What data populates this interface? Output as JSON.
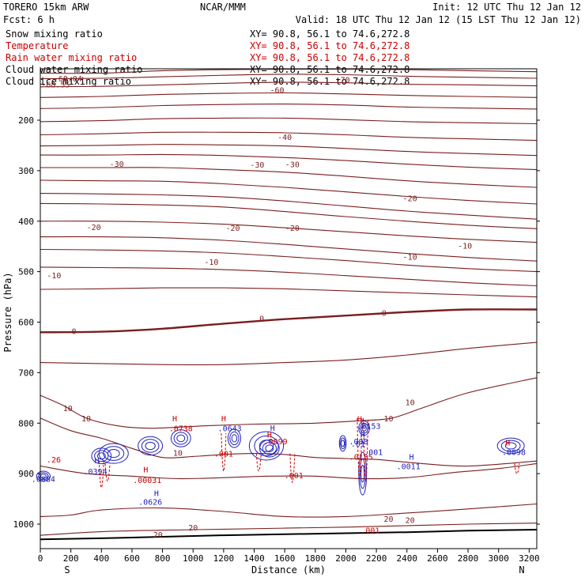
{
  "header": {
    "model": "TORERO  15km ARW",
    "institution": "NCAR/MMM",
    "init": "Init: 12 UTC Thu 12 Jan 12",
    "fcst": "Fcst:    6 h",
    "valid": "Valid: 18 UTC Thu 12 Jan 12 (15 LST Thu 12 Jan 12)"
  },
  "fields": [
    {
      "name": "Snow mixing ratio",
      "xy": "XY=  90.8, 56.1 to  74.6,272.8",
      "color": "#000000"
    },
    {
      "name": "Temperature",
      "xy": "XY=  90.8, 56.1 to  74.6,272.8",
      "color": "#cc0000"
    },
    {
      "name": "Rain water mixing ratio",
      "xy": "XY=  90.8, 56.1 to  74.6,272.8",
      "color": "#cc0000"
    },
    {
      "name": "Cloud water mixing ratio",
      "xy": "XY=  90.8, 56.1 to  74.6,272.8",
      "color": "#000000"
    },
    {
      "name": "Cloud ice mixing ratio",
      "xy": "XY=  90.8, 56.1 to  74.6,272.8",
      "color": "#000000"
    }
  ],
  "colors": {
    "temperature": "#7a1e1e",
    "rain": "#cc0000",
    "cloud": "#2222bb",
    "terrain": "#000000"
  },
  "chart_data": {
    "type": "contour",
    "xlabel": "Distance (km)",
    "ylabel": "Pressure (hPa)",
    "xlim": [
      0,
      3250
    ],
    "ylim": [
      1080,
      100
    ],
    "x_ticks": [
      0,
      200,
      400,
      600,
      800,
      1000,
      1200,
      1400,
      1600,
      1800,
      2000,
      2200,
      2400,
      2600,
      2800,
      3000,
      3200
    ],
    "y_ticks": [
      200,
      300,
      400,
      500,
      600,
      700,
      800,
      900,
      1000
    ],
    "direction_labels": {
      "left": "S",
      "right": "N"
    },
    "terrain": {
      "x": [
        0,
        400,
        800,
        1200,
        1600,
        2000,
        2400,
        2800,
        3250
      ],
      "p": [
        1030,
        1028,
        1025,
        1022,
        1020,
        1018,
        1016,
        1013,
        1011
      ]
    },
    "temperature_contours": [
      {
        "p": [
          107,
          107,
          102,
          100,
          99,
          99,
          100,
          102,
          104
        ]
      },
      {
        "p": [
          118,
          117,
          114,
          111,
          109,
          110,
          113,
          115,
          117
        ]
      },
      {
        "p": [
          134,
          133,
          130,
          127,
          125,
          126,
          129,
          130,
          132
        ]
      },
      {
        "p": [
          155,
          153,
          149,
          147,
          146,
          148,
          151,
          153,
          155
        ]
      },
      {
        "p": [
          177,
          175,
          171,
          169,
          168,
          170,
          174,
          176,
          178
        ]
      },
      {
        "p": [
          203,
          201,
          197,
          196,
          196,
          199,
          203,
          205,
          207
        ]
      },
      {
        "p": [
          229,
          227,
          224,
          224,
          225,
          229,
          234,
          237,
          240
        ]
      },
      {
        "p": [
          251,
          250,
          248,
          249,
          251,
          256,
          262,
          266,
          270
        ]
      },
      {
        "p": [
          269,
          269,
          268,
          270,
          274,
          280,
          287,
          293,
          298
        ]
      },
      {
        "p": [
          294,
          294,
          294,
          298,
          303,
          311,
          320,
          327,
          333
        ]
      },
      {
        "p": [
          319,
          320,
          321,
          326,
          333,
          342,
          351,
          359,
          366
        ]
      },
      {
        "p": [
          345,
          346,
          348,
          352,
          360,
          370,
          380,
          388,
          396
        ]
      },
      {
        "p": [
          365,
          366,
          368,
          372,
          381,
          391,
          400,
          408,
          415
        ]
      },
      {
        "p": [
          400,
          400,
          402,
          406,
          413,
          421,
          429,
          436,
          442
        ]
      },
      {
        "p": [
          431,
          431,
          433,
          438,
          446,
          455,
          464,
          472,
          479
        ]
      },
      {
        "p": [
          456,
          457,
          459,
          463,
          470,
          478,
          487,
          494,
          500
        ]
      },
      {
        "p": [
          491,
          492,
          493,
          496,
          501,
          508,
          515,
          522,
          528
        ]
      },
      {
        "p": [
          535,
          534,
          532,
          532,
          534,
          538,
          542,
          546,
          550
        ]
      },
      {
        "p": [
          680,
          682,
          684,
          684,
          680,
          675,
          665,
          652,
          640
        ]
      }
    ],
    "temperature_zero": {
      "p": [
        620,
        619,
        613,
        603,
        594,
        587,
        580,
        575,
        575
      ]
    },
    "temperature_lower": [
      {
        "x": [
          0,
          150,
          300,
          500,
          700,
          900,
          1100,
          1400,
          1800,
          2100,
          2300,
          2500,
          2800,
          3250
        ],
        "p": [
          745,
          765,
          790,
          805,
          810,
          808,
          805,
          802,
          800,
          795,
          790,
          770,
          740,
          710
        ]
      },
      {
        "x": [
          0,
          200,
          400,
          600,
          800,
          1000,
          1200,
          1400,
          1600,
          1800,
          2000,
          2200,
          2500,
          2800,
          3250
        ],
        "p": [
          790,
          815,
          830,
          850,
          868,
          866,
          862,
          860,
          862,
          868,
          870,
          872,
          880,
          885,
          875
        ]
      },
      {
        "x": [
          0,
          300,
          600,
          900,
          1200,
          1500,
          1800,
          2100,
          2400,
          2700,
          3000,
          3250
        ],
        "p": [
          885,
          900,
          905,
          910,
          908,
          905,
          905,
          910,
          908,
          898,
          890,
          880
        ]
      },
      {
        "x": [
          0,
          200,
          400,
          800,
          1200,
          1600,
          2000,
          2400,
          2800,
          3250
        ],
        "p": [
          985,
          982,
          972,
          968,
          975,
          985,
          985,
          978,
          970,
          960
        ]
      },
      {
        "x": [
          0,
          400,
          800,
          1200,
          1600,
          2000,
          2400,
          2800,
          3250
        ],
        "p": [
          1022,
          1015,
          1012,
          1010,
          1008,
          1006,
          1003,
          1000,
          998
        ]
      }
    ],
    "temperature_labels": [
      {
        "x": 180,
        "p": 117,
        "text": "-68.04"
      },
      {
        "x": 100,
        "p": 129,
        "text": "-68.55"
      },
      {
        "x": 1550,
        "p": 140,
        "text": "-60"
      },
      {
        "x": 1980,
        "p": 119,
        "text": "-70"
      },
      {
        "x": 1600,
        "p": 233,
        "text": "-40"
      },
      {
        "x": 500,
        "p": 286,
        "text": "-30"
      },
      {
        "x": 1420,
        "p": 288,
        "text": "-30"
      },
      {
        "x": 1650,
        "p": 287,
        "text": "-30"
      },
      {
        "x": 2420,
        "p": 354,
        "text": "-20"
      },
      {
        "x": 350,
        "p": 411,
        "text": "-20"
      },
      {
        "x": 1260,
        "p": 413,
        "text": "-20"
      },
      {
        "x": 1650,
        "p": 413,
        "text": "-20"
      },
      {
        "x": 2780,
        "p": 448,
        "text": "-10"
      },
      {
        "x": 2420,
        "p": 470,
        "text": "-10"
      },
      {
        "x": 1120,
        "p": 480,
        "text": "-10"
      },
      {
        "x": 90,
        "p": 507,
        "text": "-10"
      },
      {
        "x": 2250,
        "p": 581,
        "text": "0"
      },
      {
        "x": 1450,
        "p": 592,
        "text": "0"
      },
      {
        "x": 220,
        "p": 617,
        "text": "0"
      },
      {
        "x": 180,
        "p": 770,
        "text": "10"
      },
      {
        "x": 300,
        "p": 790,
        "text": "10"
      },
      {
        "x": 2280,
        "p": 790,
        "text": "10"
      },
      {
        "x": 2420,
        "p": 758,
        "text": "10"
      },
      {
        "x": 900,
        "p": 858,
        "text": "10"
      },
      {
        "x": 1000,
        "p": 1006,
        "text": "20"
      },
      {
        "x": 2280,
        "p": 989,
        "text": "20"
      },
      {
        "x": 2420,
        "p": 991,
        "text": "20"
      },
      {
        "x": 770,
        "p": 1020,
        "text": "20"
      }
    ],
    "rain_labels": [
      {
        "x": 1200,
        "p": 860,
        "text": ".001"
      },
      {
        "x": 1660,
        "p": 903,
        "text": ".001"
      },
      {
        "x": 2100,
        "p": 866,
        "text": ".0155"
      },
      {
        "x": 2160,
        "p": 1012,
        "text": ".001"
      },
      {
        "x": 700,
        "p": 912,
        "text": ".00031"
      },
      {
        "x": 1540,
        "p": 836,
        "text": ".0099"
      },
      {
        "x": 920,
        "p": 810,
        "text": ".0738"
      }
    ],
    "rain_highs": [
      {
        "x": 690,
        "p": 891
      },
      {
        "x": 880,
        "p": 790
      },
      {
        "x": 1200,
        "p": 790
      },
      {
        "x": 1500,
        "p": 822
      },
      {
        "x": 2090,
        "p": 791
      },
      {
        "x": 3060,
        "p": 838
      }
    ],
    "cloud_labels": [
      {
        "x": 20,
        "p": 910,
        "text": ".0884"
      },
      {
        "x": 360,
        "p": 895,
        "text": ".0394"
      },
      {
        "x": 720,
        "p": 955,
        "text": ".0626"
      },
      {
        "x": 1240,
        "p": 810,
        "text": ".0643"
      },
      {
        "x": 2150,
        "p": 805,
        "text": ".0153"
      },
      {
        "x": 2180,
        "p": 857,
        "text": ".001"
      },
      {
        "x": 2410,
        "p": 885,
        "text": ".0011"
      },
      {
        "x": 3100,
        "p": 857,
        "text": ".0098"
      },
      {
        "x": 2080,
        "p": 840,
        "text": ".01"
      }
    ],
    "cloud_highs": [
      {
        "x": 370,
        "p": 873
      },
      {
        "x": 760,
        "p": 938
      },
      {
        "x": 1520,
        "p": 809
      },
      {
        "x": 2430,
        "p": 866
      },
      {
        "x": 2110,
        "p": 822
      }
    ],
    "extra_labels": [
      {
        "x": 10,
        "p": 872,
        "text": ".26",
        "color": "#cc0000"
      },
      {
        "x": 1990,
        "p": 836,
        "text": ".008",
        "color": "#2222bb"
      }
    ]
  }
}
